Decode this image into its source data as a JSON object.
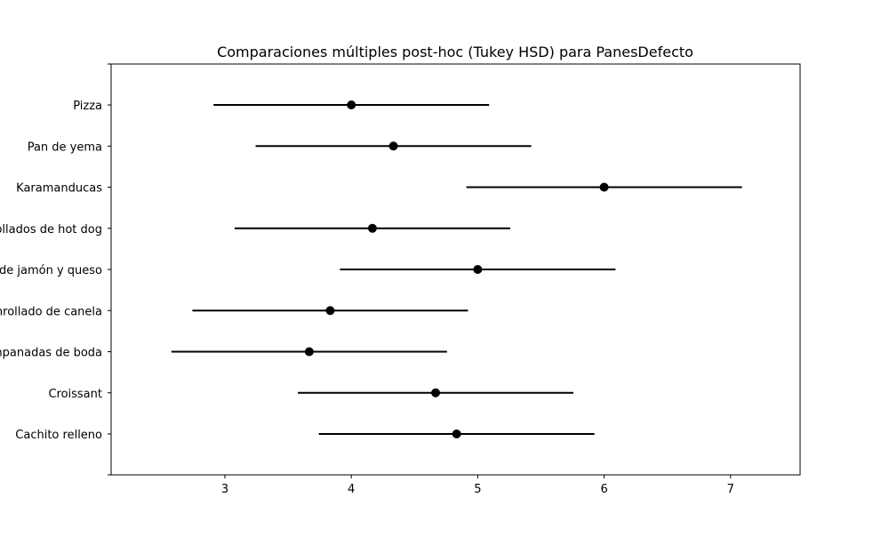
{
  "chart_data": {
    "type": "scatter",
    "title": "Comparaciones múltiples post-hoc (Tukey HSD) para PanesDefecto",
    "xlabel": "",
    "ylabel": "",
    "xlim": [
      2.1,
      7.55
    ],
    "x_ticks": [
      3,
      4,
      5,
      6,
      7
    ],
    "categories": [
      "Pizza",
      "Pan de yema",
      "Karamanducas",
      "Enrollados de hot dog",
      "Pan de jamón y queso",
      "Enrollado de canela",
      "Empanadas de boda",
      "Croissant",
      "Cachito relleno"
    ],
    "series": [
      {
        "values": [
          4.0,
          4.333,
          6.0,
          4.167,
          5.0,
          3.833,
          3.667,
          4.667,
          4.833
        ],
        "lower": [
          2.91,
          3.243,
          4.91,
          3.077,
          3.91,
          2.743,
          2.577,
          3.577,
          3.743
        ],
        "upper": [
          5.09,
          5.423,
          7.09,
          5.257,
          6.09,
          4.923,
          4.757,
          5.757,
          5.923
        ]
      }
    ],
    "color": "#000000",
    "grid": false,
    "legend": "none"
  }
}
